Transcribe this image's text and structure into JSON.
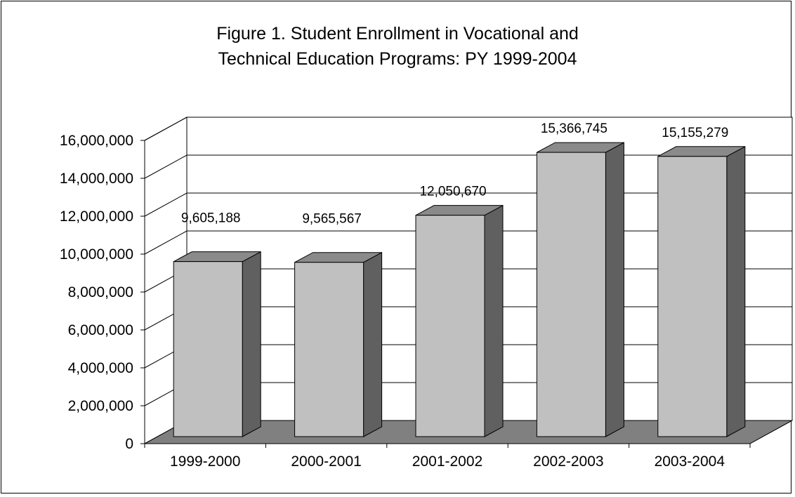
{
  "chart_data": {
    "type": "bar",
    "title_line1": "Figure 1. Student Enrollment in Vocational and",
    "title_line2": "Technical Education Programs: PY 1999-2004",
    "categories": [
      "1999-2000",
      "2000-2001",
      "2001-2002",
      "2002-2003",
      "2003-2004"
    ],
    "values": [
      9605188,
      9565567,
      12050670,
      15366745,
      15155279
    ],
    "data_labels": [
      "9,605,188",
      "9,565,567",
      "12,050,670",
      "15,366,745",
      "15,155,279"
    ],
    "y_ticks": [
      "0",
      "2,000,000",
      "4,000,000",
      "6,000,000",
      "8,000,000",
      "10,000,000",
      "12,000,000",
      "14,000,000",
      "16,000,000"
    ],
    "ylim": [
      0,
      16000000
    ],
    "xlabel": "",
    "ylabel": "",
    "grid": true,
    "legend": "none",
    "colors": {
      "bar_front": "#c0c0c0",
      "bar_side": "#606060",
      "bar_top": "#8a8a8a",
      "floor": "#808080"
    }
  }
}
